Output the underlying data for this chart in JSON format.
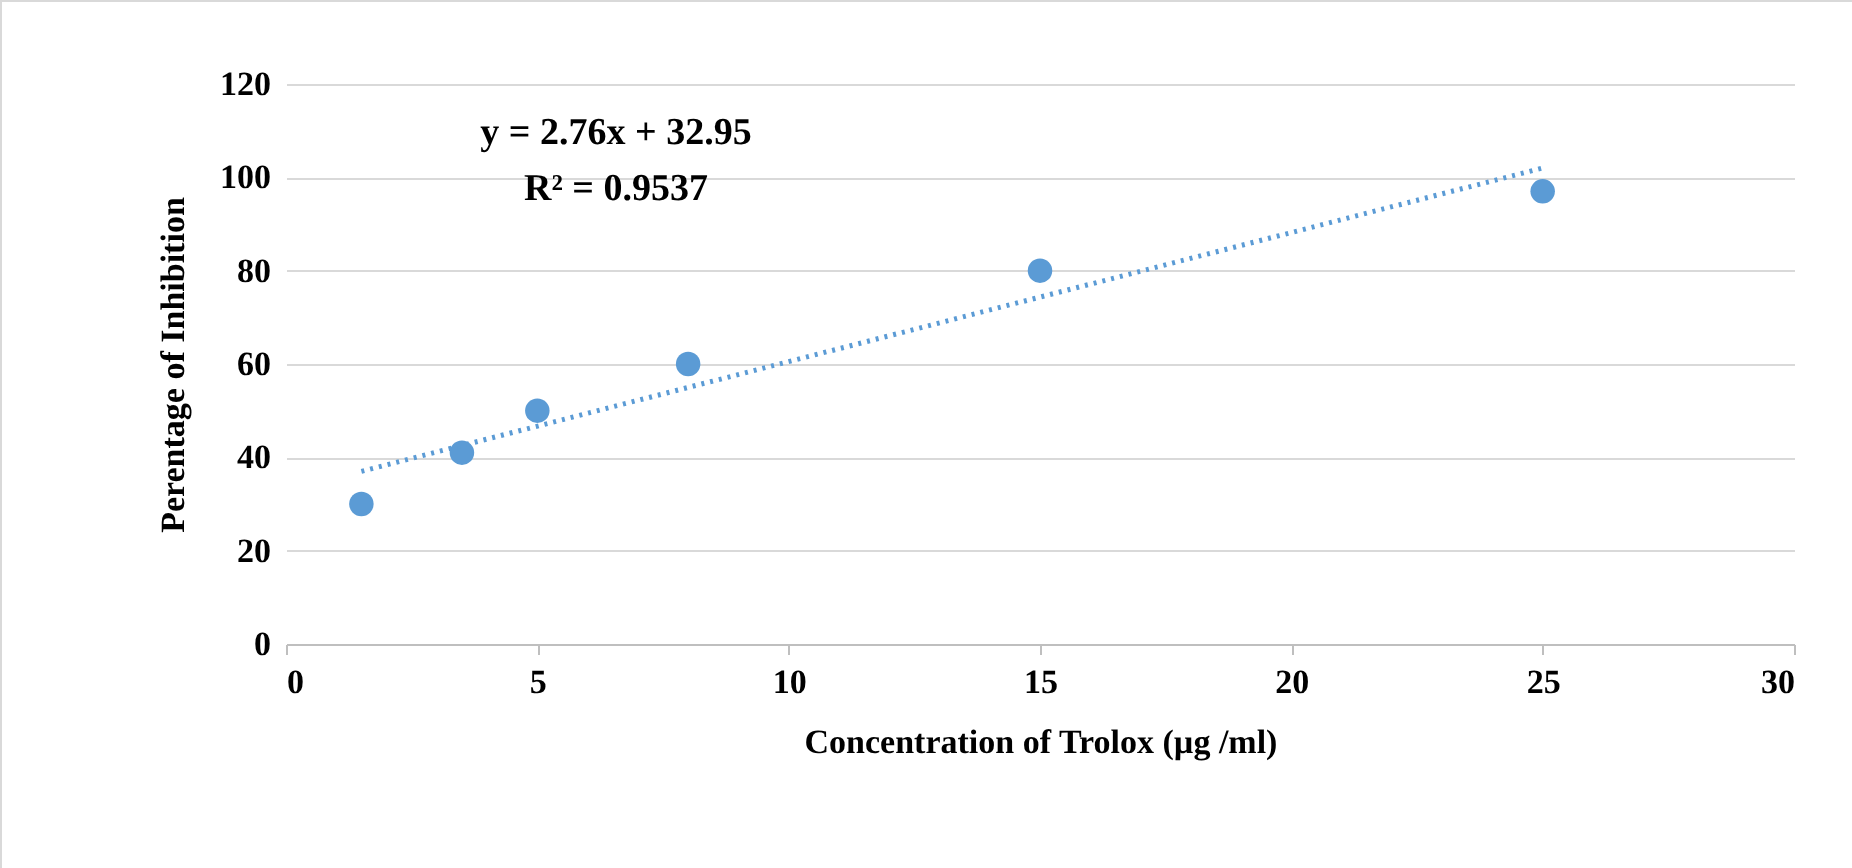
{
  "chart_data": {
    "type": "scatter",
    "xlabel": "Concentration of Trolox (µg /ml)",
    "ylabel": "Perentage of Inhibition",
    "annotations": [
      "y = 2.76x + 32.95",
      "R² = 0.9537"
    ],
    "series": [
      {
        "type": "scatter",
        "color": "#5b9bd5",
        "x": [
          1.5,
          3.5,
          5,
          8,
          15,
          25
        ],
        "values": [
          30,
          41,
          50,
          60,
          80,
          97
        ],
        "marker": "circle"
      },
      {
        "type": "line",
        "color": "#5b9bd5",
        "x": [
          1.5,
          25
        ],
        "values": [
          37,
          102
        ],
        "line_style": "dotted"
      }
    ],
    "xlim": [
      0,
      30
    ],
    "xticks": [
      0,
      5,
      10,
      15,
      20,
      25,
      30
    ],
    "ylim": [
      0,
      120
    ],
    "yticks": [
      0,
      20,
      40,
      60,
      80,
      100,
      120
    ],
    "grid": "y"
  }
}
